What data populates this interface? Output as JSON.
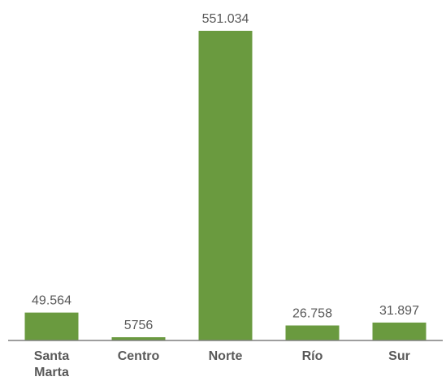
{
  "chart_data": {
    "type": "bar",
    "categories": [
      "Santa Marta",
      "Centro",
      "Norte",
      "Río",
      "Sur"
    ],
    "category_lines": [
      [
        "Santa",
        "Marta"
      ],
      [
        "Centro"
      ],
      [
        "Norte"
      ],
      [
        "Río"
      ],
      [
        "Sur"
      ]
    ],
    "values": [
      49564,
      5756,
      551034,
      26758,
      31897
    ],
    "value_labels": [
      "49.564",
      "5756",
      "551.034",
      "26.758",
      "31.897"
    ],
    "title": "",
    "xlabel": "",
    "ylabel": "",
    "ylim": [
      0,
      551034
    ],
    "grid": false,
    "legend": "none",
    "bar_color": "#6a9a3f",
    "label_color": "#595959",
    "axis_color": "#7f7f7f"
  }
}
